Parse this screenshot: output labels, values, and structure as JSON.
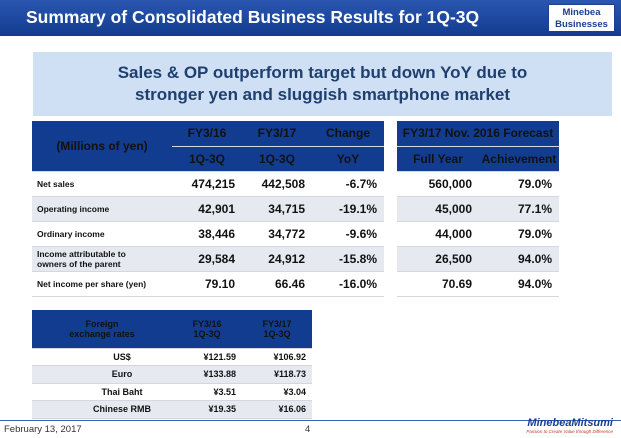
{
  "header": {
    "title": "Summary of Consolidated Business Results for 1Q-3Q",
    "badge_line1": "Minebea",
    "badge_line2": "Businesses"
  },
  "summary": {
    "line1": "Sales & OP outperform target but down YoY due to",
    "line2": "stronger yen and sluggish smartphone market"
  },
  "results": {
    "unit_label": "(Millions of yen)",
    "col_fy16_line1": "FY3/16",
    "col_fy16_line2": "1Q-3Q",
    "col_fy17_line1": "FY3/17",
    "col_fy17_line2": "1Q-3Q",
    "col_change_line1": "Change",
    "col_change_line2": "YoY",
    "forecast_title": "FY3/17 Nov. 2016 Forecast",
    "col_fullyear": "Full Year",
    "col_achievement": "Achievement",
    "rows": [
      {
        "label": "Net sales",
        "fy16": "474,215",
        "fy17": "442,508",
        "change": "-6.7%",
        "full_year": "560,000",
        "achievement": "79.0%"
      },
      {
        "label": "Operating income",
        "fy16": "42,901",
        "fy17": "34,715",
        "change": "-19.1%",
        "full_year": "45,000",
        "achievement": "77.1%"
      },
      {
        "label": "Ordinary income",
        "fy16": "38,446",
        "fy17": "34,772",
        "change": "-9.6%",
        "full_year": "44,000",
        "achievement": "79.0%"
      },
      {
        "label_line1": "Income attributable to",
        "label_line2": "owners of the parent",
        "fy16": "29,584",
        "fy17": "24,912",
        "change": "-15.8%",
        "full_year": "26,500",
        "achievement": "94.0%"
      },
      {
        "label": "Net income per share (yen)",
        "fy16": "79.10",
        "fy17": "66.46",
        "change": "-16.0%",
        "full_year": "70.69",
        "achievement": "94.0%"
      }
    ]
  },
  "fx": {
    "label_line1": "Foreign",
    "label_line2": "exchange rates",
    "col_fy16_line1": "FY3/16",
    "col_fy16_line2": "1Q-3Q",
    "col_fy17_line1": "FY3/17",
    "col_fy17_line2": "1Q-3Q",
    "rows": [
      {
        "currency": "US$",
        "fy16": "¥121.59",
        "fy17": "¥106.92"
      },
      {
        "currency": "Euro",
        "fy16": "¥133.88",
        "fy17": "¥118.73"
      },
      {
        "currency": "Thai Baht",
        "fy16": "¥3.51",
        "fy17": "¥3.04"
      },
      {
        "currency": "Chinese RMB",
        "fy16": "¥19.35",
        "fy17": "¥16.06"
      }
    ]
  },
  "footer": {
    "date": "February 13, 2017",
    "page": "4",
    "logo": "MinebeaMitsumi",
    "tagline": "Passion to Create Value through Difference"
  }
}
